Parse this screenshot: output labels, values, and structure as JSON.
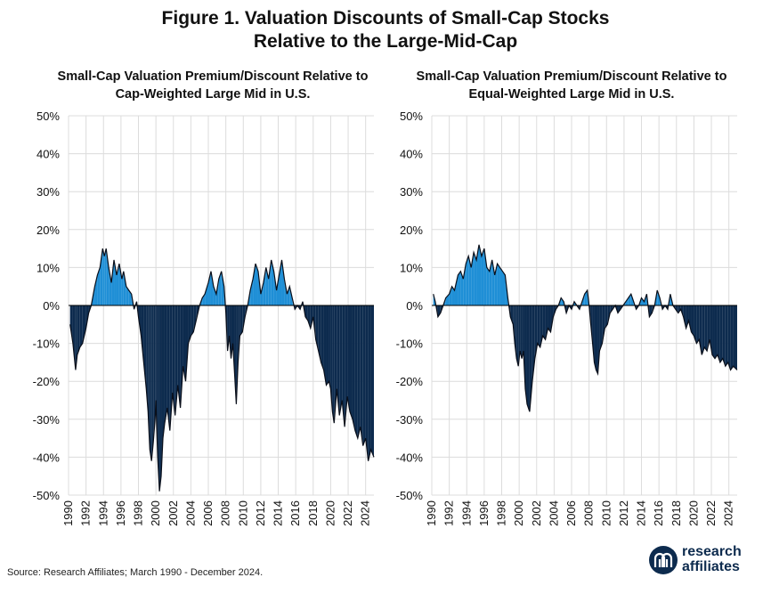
{
  "figure": {
    "title_line1": "Figure 1. Valuation Discounts of Small-Cap Stocks",
    "title_line2": "Relative to the Large-Mid-Cap",
    "source": "Source: Research Affiliates; March 1990 - December 2024.",
    "logo": {
      "line1": "research",
      "line2": "affiliates",
      "icon": "ra-monogram-icon"
    }
  },
  "colors": {
    "positive": "#1f8fd6",
    "negative": "#0d2b4e",
    "line": "#0a0f1a",
    "grid": "#dcdcdc"
  },
  "chart_data": [
    {
      "type": "area",
      "title_line1": "Small-Cap Valuation Premium/Discount Relative to",
      "title_line2": "Cap-Weighted Large Mid in U.S.",
      "xlabel": "",
      "ylabel": "",
      "ylim": [
        -50,
        50
      ],
      "xlim": [
        1990,
        2024.95
      ],
      "yticks": [
        50,
        40,
        30,
        20,
        10,
        0,
        -10,
        -20,
        -30,
        -40,
        -50
      ],
      "ytick_labels": [
        "50%",
        "40%",
        "30%",
        "20%",
        "10%",
        "0%",
        "-10%",
        "-20%",
        "-30%",
        "-40%",
        "-50%"
      ],
      "xtick_labels": [
        "1990",
        "1992",
        "1994",
        "1996",
        "1998",
        "2000",
        "2002",
        "2004",
        "2006",
        "2008",
        "2010",
        "2012",
        "2014",
        "2016",
        "2018",
        "2020",
        "2022",
        "2024"
      ],
      "grid": true,
      "series": [
        {
          "x": [
            1990.17,
            1990.5,
            1990.8,
            1991.0,
            1991.3,
            1991.6,
            1992.0,
            1992.3,
            1992.6,
            1993.0,
            1993.3,
            1993.6,
            1993.9,
            1994.1,
            1994.3,
            1994.6,
            1994.9,
            1995.2,
            1995.5,
            1995.8,
            1996.1,
            1996.3,
            1996.6,
            1996.9,
            1997.2,
            1997.5,
            1997.8,
            1998.0,
            1998.3,
            1998.6,
            1998.9,
            1999.1,
            1999.3,
            1999.5,
            1999.7,
            1999.9,
            2000.0,
            2000.2,
            2000.4,
            2000.6,
            2000.8,
            2001.0,
            2001.3,
            2001.6,
            2001.9,
            2002.2,
            2002.5,
            2002.8,
            2003.1,
            2003.4,
            2003.7,
            2004.0,
            2004.3,
            2004.6,
            2005.0,
            2005.3,
            2005.6,
            2006.0,
            2006.3,
            2006.6,
            2006.9,
            2007.2,
            2007.5,
            2007.8,
            2008.0,
            2008.2,
            2008.4,
            2008.6,
            2008.8,
            2009.0,
            2009.2,
            2009.4,
            2009.6,
            2009.9,
            2010.2,
            2010.5,
            2010.8,
            2011.1,
            2011.4,
            2011.7,
            2012.0,
            2012.3,
            2012.6,
            2012.9,
            2013.2,
            2013.5,
            2013.8,
            2014.1,
            2014.4,
            2014.7,
            2015.0,
            2015.3,
            2015.6,
            2015.9,
            2016.2,
            2016.5,
            2016.8,
            2017.1,
            2017.4,
            2017.7,
            2018.0,
            2018.3,
            2018.6,
            2018.9,
            2019.2,
            2019.5,
            2019.8,
            2020.0,
            2020.2,
            2020.4,
            2020.7,
            2021.0,
            2021.3,
            2021.6,
            2021.9,
            2022.2,
            2022.5,
            2022.8,
            2023.1,
            2023.4,
            2023.7,
            2024.0,
            2024.3,
            2024.6,
            2024.95
          ],
          "y": [
            -5,
            -10,
            -17,
            -13,
            -11,
            -10,
            -6,
            -2,
            0,
            5,
            8,
            10,
            15,
            13,
            15,
            10,
            6,
            12,
            8,
            11,
            7,
            9,
            5,
            4,
            3,
            -1,
            1,
            -3,
            -8,
            -15,
            -22,
            -28,
            -38,
            -41,
            -36,
            -30,
            -25,
            -40,
            -49,
            -45,
            -35,
            -31,
            -27,
            -33,
            -23,
            -29,
            -21,
            -27,
            -16,
            -20,
            -10,
            -8,
            -7,
            -4,
            0,
            2,
            3,
            6,
            9,
            5,
            3,
            7,
            9,
            5,
            -2,
            -12,
            -8,
            -14,
            -10,
            -18,
            -26,
            -15,
            -8,
            -7,
            -3,
            0,
            4,
            7,
            11,
            9,
            3,
            6,
            10,
            7,
            12,
            9,
            4,
            8,
            12,
            7,
            3,
            5,
            2,
            -1,
            0,
            -1,
            1,
            -3,
            -4,
            -6,
            -3,
            -9,
            -12,
            -15,
            -17,
            -21,
            -20,
            -22,
            -28,
            -31,
            -22,
            -29,
            -25,
            -32,
            -24,
            -28,
            -30,
            -33,
            -35,
            -32,
            -37,
            -35,
            -41,
            -38,
            -40
          ]
        }
      ]
    },
    {
      "type": "area",
      "title_line1": "Small-Cap Valuation Premium/Discount Relative to",
      "title_line2": "Equal-Weighted Large Mid in U.S.",
      "xlabel": "",
      "ylabel": "",
      "ylim": [
        -50,
        50
      ],
      "xlim": [
        1990,
        2024.95
      ],
      "yticks": [
        50,
        40,
        30,
        20,
        10,
        0,
        -10,
        -20,
        -30,
        -40,
        -50
      ],
      "ytick_labels": [
        "50%",
        "40%",
        "30%",
        "20%",
        "10%",
        "0%",
        "-10%",
        "-20%",
        "-30%",
        "-40%",
        "-50%"
      ],
      "xtick_labels": [
        "1990",
        "1992",
        "1994",
        "1996",
        "1998",
        "2000",
        "2002",
        "2004",
        "2006",
        "2008",
        "2010",
        "2012",
        "2014",
        "2016",
        "2018",
        "2020",
        "2022",
        "2024"
      ],
      "grid": true,
      "series": [
        {
          "x": [
            1990.17,
            1990.4,
            1990.7,
            1991.0,
            1991.3,
            1991.6,
            1992.0,
            1992.3,
            1992.6,
            1993.0,
            1993.3,
            1993.6,
            1993.9,
            1994.2,
            1994.5,
            1994.8,
            1995.1,
            1995.4,
            1995.7,
            1996.0,
            1996.3,
            1996.6,
            1996.9,
            1997.2,
            1997.5,
            1997.8,
            1998.1,
            1998.4,
            1998.7,
            1999.0,
            1999.3,
            1999.5,
            1999.7,
            1999.9,
            2000.1,
            2000.3,
            2000.5,
            2000.7,
            2000.9,
            2001.2,
            2001.5,
            2001.8,
            2002.1,
            2002.4,
            2002.7,
            2003.0,
            2003.3,
            2003.6,
            2003.9,
            2004.2,
            2004.5,
            2004.8,
            2005.1,
            2005.4,
            2005.7,
            2006.0,
            2006.3,
            2006.6,
            2006.9,
            2007.2,
            2007.5,
            2007.8,
            2008.0,
            2008.2,
            2008.4,
            2008.6,
            2008.8,
            2009.0,
            2009.2,
            2009.5,
            2009.8,
            2010.1,
            2010.4,
            2010.7,
            2011.0,
            2011.3,
            2011.6,
            2011.9,
            2012.2,
            2012.5,
            2012.8,
            2013.1,
            2013.4,
            2013.7,
            2014.0,
            2014.3,
            2014.6,
            2014.9,
            2015.2,
            2015.5,
            2015.8,
            2016.1,
            2016.4,
            2016.7,
            2017.0,
            2017.3,
            2017.6,
            2017.9,
            2018.2,
            2018.5,
            2018.8,
            2019.1,
            2019.4,
            2019.7,
            2020.0,
            2020.3,
            2020.6,
            2020.9,
            2021.2,
            2021.5,
            2021.8,
            2022.1,
            2022.4,
            2022.7,
            2023.0,
            2023.3,
            2023.6,
            2023.9,
            2024.2,
            2024.5,
            2024.95
          ],
          "y": [
            3,
            1,
            -3,
            -2,
            0,
            2,
            3,
            5,
            4,
            8,
            9,
            7,
            11,
            13,
            10,
            14,
            12,
            16,
            13,
            15,
            10,
            9,
            12,
            8,
            11,
            10,
            9,
            8,
            2,
            -3,
            -5,
            -10,
            -14,
            -16,
            -12,
            -14,
            -12,
            -22,
            -26,
            -28,
            -20,
            -14,
            -10,
            -11,
            -8,
            -9,
            -6,
            -7,
            -3,
            -1,
            0,
            2,
            1,
            -2,
            0,
            -1,
            1,
            0,
            -1,
            1,
            3,
            4,
            0,
            -5,
            -10,
            -15,
            -17,
            -18,
            -12,
            -10,
            -6,
            -5,
            -2,
            -1,
            0,
            -2,
            -1,
            0,
            1,
            2,
            3,
            1,
            -1,
            0,
            2,
            1,
            3,
            -3,
            -2,
            0,
            4,
            2,
            -1,
            0,
            -1,
            3,
            0,
            -1,
            -2,
            -1,
            -3,
            -6,
            -4,
            -7,
            -8,
            -10,
            -9,
            -13,
            -11,
            -12,
            -9,
            -13,
            -14,
            -13,
            -15,
            -14,
            -16,
            -15,
            -17,
            -16,
            -17
          ]
        }
      ]
    }
  ]
}
